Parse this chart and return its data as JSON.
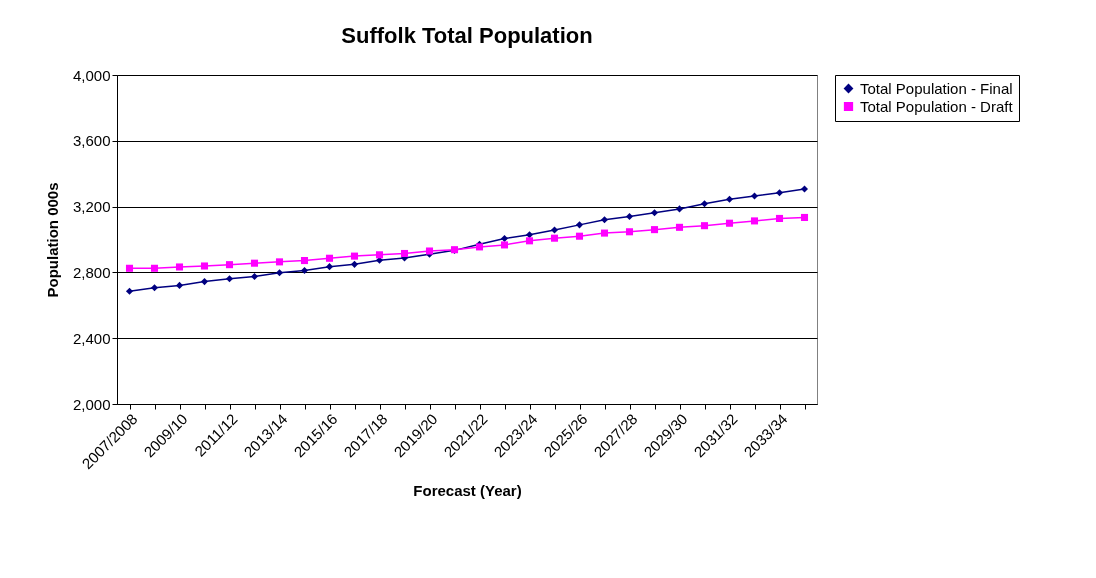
{
  "chart_data": {
    "type": "line",
    "title": "Suffolk Total Population",
    "xlabel": "Forecast (Year)",
    "ylabel": "Population 000s",
    "categories": [
      "2007/2008",
      null,
      "2009/10",
      null,
      "2011/12",
      null,
      "2013/14",
      null,
      "2015/16",
      null,
      "2017/18",
      null,
      "2019/20",
      null,
      "2021/22",
      null,
      "2023/24",
      null,
      "2025/26",
      null,
      "2027/28",
      null,
      "2029/30",
      null,
      "2031/32",
      null,
      "2033/34",
      null
    ],
    "series": [
      {
        "name": "Total Population - Final",
        "color": "#000080",
        "marker": "diamond",
        "values": [
          2685,
          2707,
          2721,
          2744,
          2761,
          2775,
          2798,
          2812,
          2835,
          2849,
          2874,
          2888,
          2911,
          2934,
          2971,
          3006,
          3029,
          3058,
          3089,
          3120,
          3140,
          3163,
          3186,
          3217,
          3245,
          3264,
          3284,
          3307
        ]
      },
      {
        "name": "Total Population - Draft",
        "color": "#ff00ff",
        "marker": "square",
        "values": [
          2825,
          2825,
          2833,
          2839,
          2847,
          2856,
          2864,
          2872,
          2886,
          2899,
          2907,
          2915,
          2930,
          2938,
          2955,
          2967,
          2992,
          3008,
          3020,
          3039,
          3047,
          3060,
          3074,
          3084,
          3099,
          3113,
          3128,
          3134
        ]
      }
    ],
    "ylim": [
      2000,
      4000
    ],
    "yticks": [
      {
        "value": 2000,
        "label": "2,000"
      },
      {
        "value": 2400,
        "label": "2,400"
      },
      {
        "value": 2800,
        "label": "2,800"
      },
      {
        "value": 3200,
        "label": "3,200"
      },
      {
        "value": 3600,
        "label": "3,600"
      },
      {
        "value": 4000,
        "label": "4,000"
      }
    ],
    "grid": "y",
    "legend": "right",
    "line_style": "solid"
  }
}
